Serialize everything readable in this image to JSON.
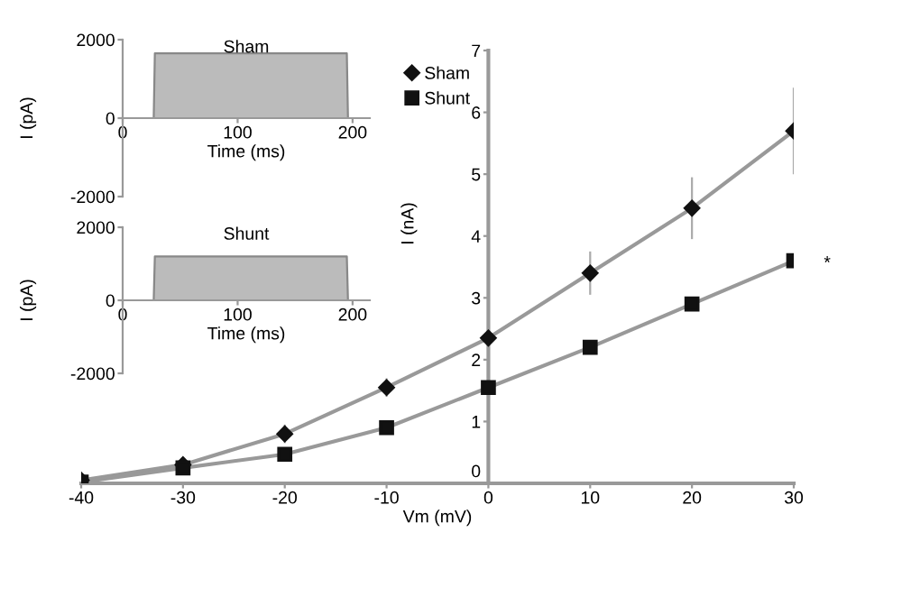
{
  "chart_data": [
    {
      "type": "line",
      "xlabel": "Vm (mV)",
      "ylabel": "I (nA)",
      "x": [
        -40,
        -30,
        -20,
        -10,
        0,
        10,
        20,
        30
      ],
      "xlim": [
        -40,
        30
      ],
      "xticks": [
        -40,
        -30,
        -20,
        -10,
        0,
        10,
        20,
        30
      ],
      "ylim": [
        0,
        7
      ],
      "yticks": [
        0,
        1,
        2,
        3,
        4,
        5,
        6,
        7
      ],
      "grid": false,
      "legend": "top",
      "annotations": [
        {
          "text": "*",
          "x": 30,
          "y": 3.6
        }
      ],
      "series": [
        {
          "name": "Sham",
          "color": "#111111",
          "marker": "diamond",
          "values": [
            0.05,
            0.3,
            0.8,
            1.55,
            2.35,
            3.4,
            4.45,
            5.7
          ],
          "errors": [
            null,
            null,
            0.15,
            0.15,
            0.2,
            0.35,
            0.5,
            0.7
          ]
        },
        {
          "name": "Shunt",
          "color": "#111111",
          "marker": "square",
          "values": [
            0.02,
            0.25,
            0.47,
            0.9,
            1.55,
            2.2,
            2.9,
            3.6
          ],
          "errors": [
            null,
            null,
            null,
            null,
            null,
            null,
            null,
            null
          ]
        }
      ]
    },
    {
      "type": "area",
      "title": "Sham",
      "xlabel": "Time (ms)",
      "ylabel": "I (pA)",
      "x": [
        0,
        27,
        28,
        195,
        196,
        215
      ],
      "values": [
        0,
        0,
        1650,
        1650,
        0,
        0
      ],
      "xlim": [
        0,
        215
      ],
      "xticks": [
        0,
        100,
        200
      ],
      "ylim": [
        -2000,
        2000
      ],
      "yticks": [
        -2000,
        0,
        2000
      ],
      "grid": false,
      "color": "#bbbbbb"
    },
    {
      "type": "area",
      "title": "Shunt",
      "xlabel": "Time (ms)",
      "ylabel": "I (pA)",
      "x": [
        0,
        27,
        28,
        195,
        196,
        215
      ],
      "values": [
        0,
        0,
        1200,
        1200,
        0,
        0
      ],
      "xlim": [
        0,
        215
      ],
      "xticks": [
        0,
        100,
        200
      ],
      "ylim": [
        -2000,
        2000
      ],
      "yticks": [
        -2000,
        0,
        2000
      ],
      "grid": false,
      "color": "#bbbbbb"
    }
  ]
}
